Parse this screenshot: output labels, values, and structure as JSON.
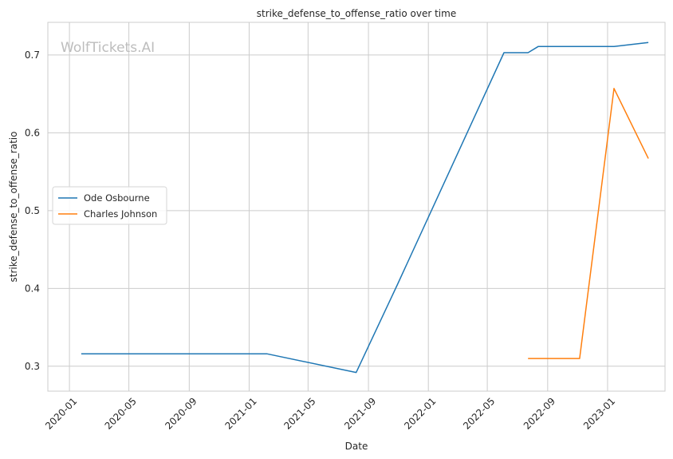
{
  "chart_data": {
    "type": "line",
    "title": "strike_defense_to_offense_ratio over time",
    "xlabel": "Date",
    "ylabel": "strike_defense_to_offense_ratio",
    "watermark": "WolfTickets.AI",
    "x_ticks": [
      "2020-01",
      "2020-05",
      "2020-09",
      "2021-01",
      "2021-05",
      "2021-09",
      "2022-01",
      "2022-05",
      "2022-09",
      "2023-01"
    ],
    "y_ticks": [
      "0.3",
      "0.4",
      "0.5",
      "0.6",
      "0.7"
    ],
    "xlim": [
      "2019-11-18",
      "2023-04-28"
    ],
    "ylim": [
      0.268,
      0.742
    ],
    "grid": true,
    "legend_position": "center-left",
    "series": [
      {
        "name": "Ode Osbourne",
        "color": "#1f77b4",
        "points": [
          {
            "x": "2020-01-25",
            "y": 0.316
          },
          {
            "x": "2021-02-06",
            "y": 0.316
          },
          {
            "x": "2021-08-07",
            "y": 0.292
          },
          {
            "x": "2021-10-30",
            "y": 0.405
          },
          {
            "x": "2022-06-04",
            "y": 0.703
          },
          {
            "x": "2022-07-23",
            "y": 0.703
          },
          {
            "x": "2022-08-13",
            "y": 0.711
          },
          {
            "x": "2023-01-14",
            "y": 0.711
          },
          {
            "x": "2023-03-25",
            "y": 0.716
          }
        ]
      },
      {
        "name": "Charles Johnson",
        "color": "#ff7f0e",
        "points": [
          {
            "x": "2022-07-23",
            "y": 0.31
          },
          {
            "x": "2022-11-05",
            "y": 0.31
          },
          {
            "x": "2023-01-14",
            "y": 0.657
          },
          {
            "x": "2023-03-25",
            "y": 0.567
          }
        ]
      }
    ]
  }
}
